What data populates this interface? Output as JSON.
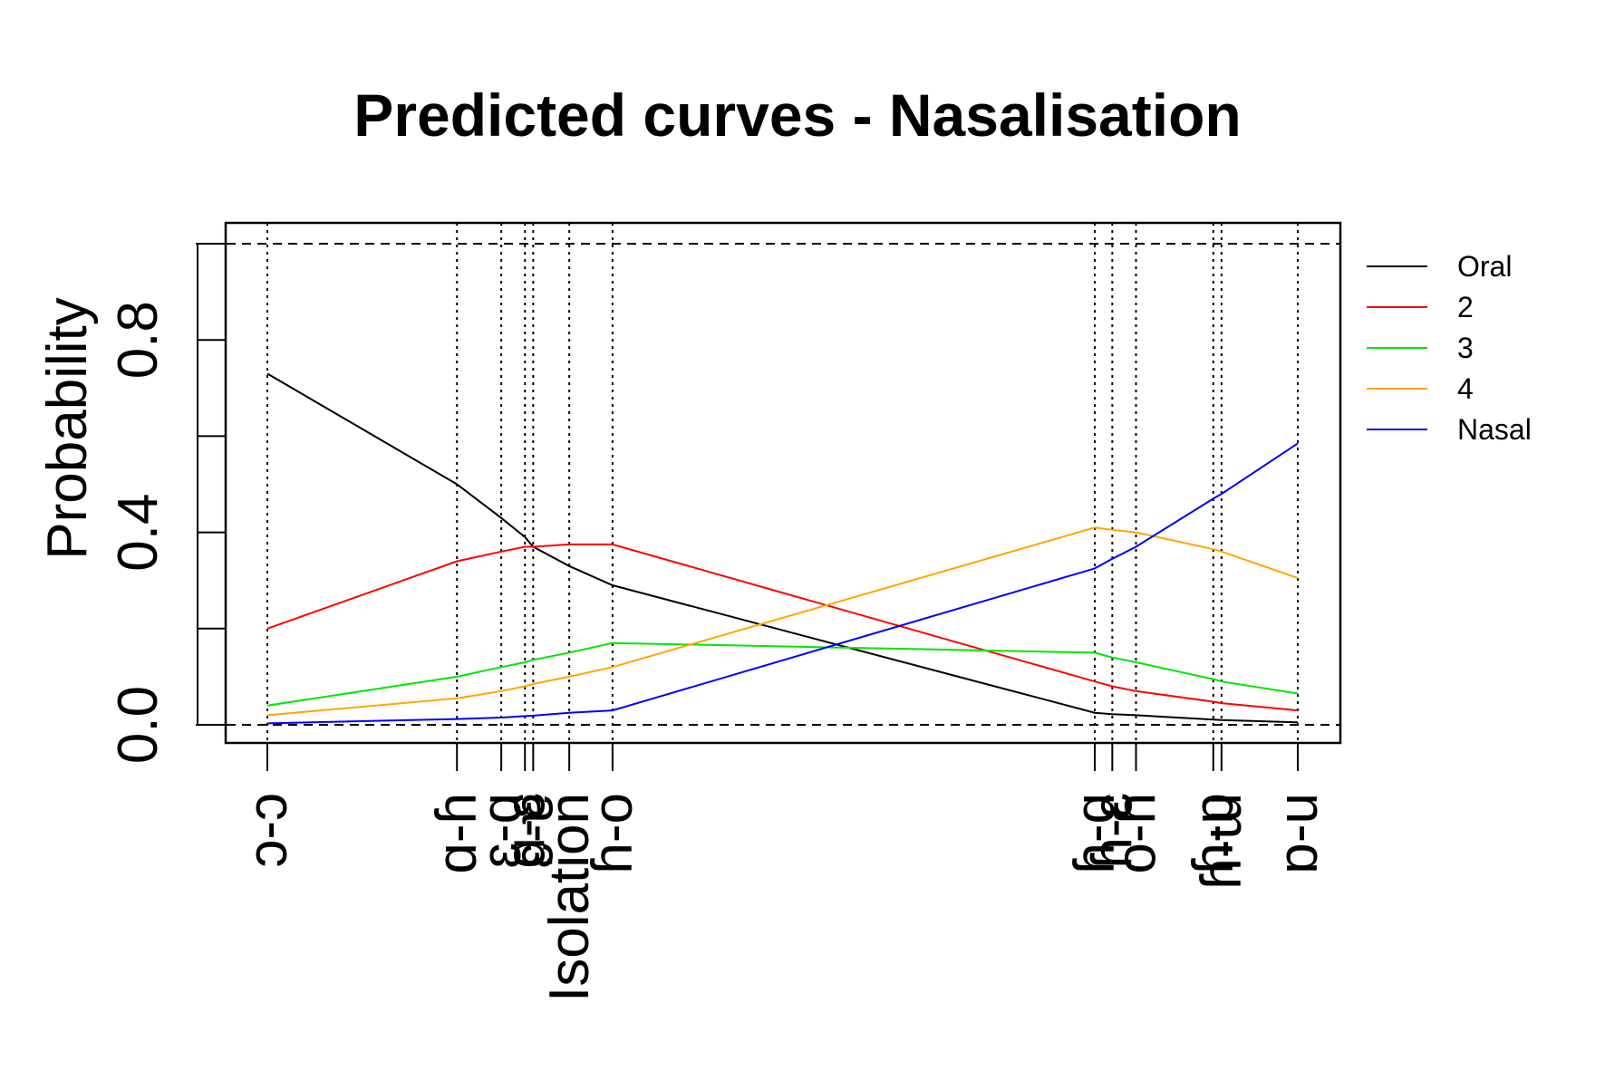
{
  "chart_data": {
    "type": "line",
    "title": "Predicted curves - Nasalisation",
    "xlabel": "",
    "ylabel": "Probability",
    "ylim": [
      0,
      1
    ],
    "yticks": [
      "0.0",
      "0.4",
      "0.8"
    ],
    "reference_lines_y": [
      0,
      1
    ],
    "x": [
      0.0,
      0.184,
      0.227,
      0.25,
      0.258,
      0.293,
      0.335,
      0.803,
      0.82,
      0.843,
      0.918,
      0.926,
      1.0
    ],
    "tick_labels": [
      "ɔ-ɔ",
      "ɑ-ɦ",
      "ɛ-ɑ",
      "ɑ-ɛ",
      "ɛ-ɐ",
      "Isolation",
      "ɦ-o",
      "ɦ-ɑ",
      "ɦ-ɛ",
      "o-ɦ",
      "ɦ-ɒ",
      "ɦ-ɯ",
      "ɒ-u"
    ],
    "series": [
      {
        "name": "Oral",
        "color": "#000000",
        "values": [
          0.73,
          0.5,
          0.43,
          0.39,
          0.37,
          0.33,
          0.29,
          0.025,
          0.022,
          0.02,
          0.011,
          0.01,
          0.005
        ]
      },
      {
        "name": "2",
        "color": "#ff0000",
        "values": [
          0.2,
          0.34,
          0.36,
          0.37,
          0.37,
          0.375,
          0.375,
          0.09,
          0.08,
          0.07,
          0.048,
          0.045,
          0.03
        ]
      },
      {
        "name": "3",
        "color": "#00e600",
        "values": [
          0.04,
          0.1,
          0.12,
          0.13,
          0.135,
          0.15,
          0.17,
          0.15,
          0.14,
          0.13,
          0.095,
          0.09,
          0.065
        ]
      },
      {
        "name": "4",
        "color": "#ffa500",
        "values": [
          0.02,
          0.055,
          0.07,
          0.08,
          0.085,
          0.1,
          0.12,
          0.41,
          0.405,
          0.4,
          0.365,
          0.36,
          0.305
        ]
      },
      {
        "name": "Nasal",
        "color": "#0000ff",
        "values": [
          0.003,
          0.012,
          0.015,
          0.018,
          0.019,
          0.025,
          0.03,
          0.325,
          0.345,
          0.37,
          0.47,
          0.48,
          0.585
        ]
      }
    ],
    "legend_position": "right",
    "grid": false
  }
}
